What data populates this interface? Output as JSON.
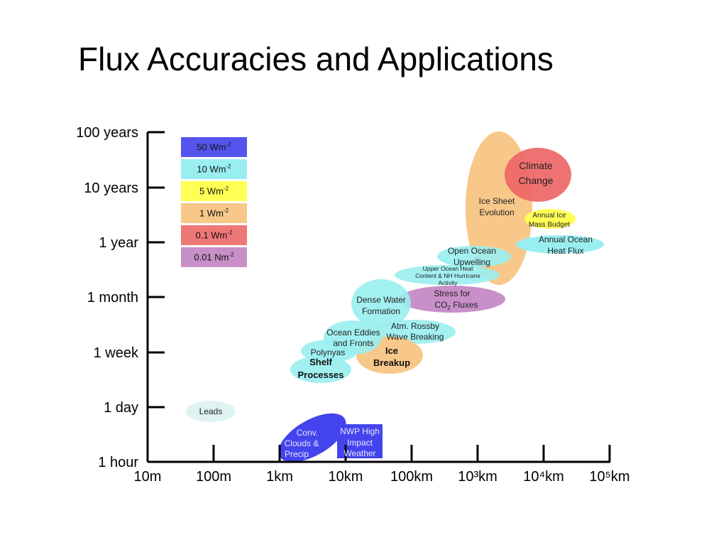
{
  "title": "Flux Accuracies and Applications",
  "legend": [
    {
      "label": "50 Wm",
      "sup": "-2",
      "color": "#5555ee"
    },
    {
      "label": "10 Wm",
      "sup": "-2",
      "color": "#99eef0"
    },
    {
      "label": "5 Wm",
      "sup": "-2",
      "color": "#ffff55"
    },
    {
      "label": "1 Wm",
      "sup": "-2",
      "color": "#f7c88a"
    },
    {
      "label": "0.1 Wm",
      "sup": "-2",
      "color": "#ee7777"
    },
    {
      "label": "0.01 Nm",
      "sup": "-2",
      "color": "#c890c8"
    }
  ],
  "chart_data": {
    "type": "scatter",
    "x_axis_ticks": [
      "10m",
      "100m",
      "1km",
      "10km",
      "100km",
      "10³km",
      "10⁴km",
      "10⁵km"
    ],
    "y_axis_ticks": [
      "1 hour",
      "1 day",
      "1 week",
      "1 month",
      "1 year",
      "10 years",
      "100 years"
    ],
    "regions": [
      {
        "label": "Climate Change",
        "accuracy": "0.1 Wm-2",
        "color": "#ee6666"
      },
      {
        "label": "Ice Sheet Evolution",
        "accuracy": "1 Wm-2",
        "color": "#f7c88a"
      },
      {
        "label": "Annual Ice Mass Budget",
        "accuracy": "5 Wm-2",
        "color": "#ffff55"
      },
      {
        "label": "Annual Ocean Heat Flux",
        "accuracy": "10 Wm-2",
        "color": "#99eef0"
      },
      {
        "label": "Open Ocean Upwelling",
        "accuracy": "10 Wm-2",
        "color": "#99eef0"
      },
      {
        "label": "Upper Ocean Heat Content & NH Hurricane Activity",
        "accuracy": "10 Wm-2",
        "color": "#99eef0"
      },
      {
        "label": "Stress for CO2 Fluxes",
        "accuracy": "0.01 Nm-2",
        "color": "#c890c8"
      },
      {
        "label": "Dense Water Formation",
        "accuracy": "10 Wm-2",
        "color": "#99eef0"
      },
      {
        "label": "Atm. Rossby Wave Breaking",
        "accuracy": "10 Wm-2",
        "color": "#99eef0"
      },
      {
        "label": "Ocean Eddies and Fronts",
        "accuracy": "10 Wm-2",
        "color": "#99eef0"
      },
      {
        "label": "Ice Breakup",
        "accuracy": "1 Wm-2",
        "color": "#f7c88a"
      },
      {
        "label": "Polynyas",
        "accuracy": "10 Wm-2",
        "color": "#99eef0"
      },
      {
        "label": "Shelf Processes",
        "accuracy": "10 Wm-2",
        "color": "#99eef0"
      },
      {
        "label": "Leads",
        "accuracy": "10 Wm-2",
        "color": "#dff3f3"
      },
      {
        "label": "Conv. Clouds & Precip",
        "accuracy": "50 Wm-2",
        "color": "#4444ee"
      },
      {
        "label": "NWP High Impact Weather",
        "accuracy": "50 Wm-2",
        "color": "#4444ee"
      }
    ]
  }
}
